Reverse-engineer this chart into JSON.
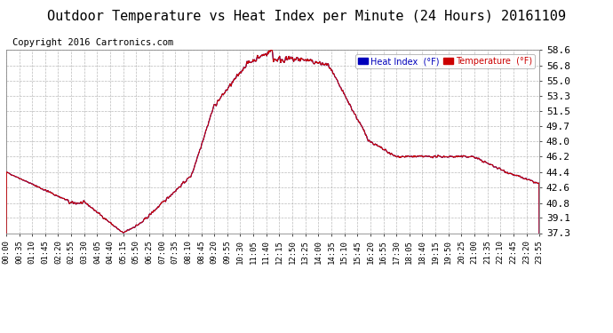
{
  "title": "Outdoor Temperature vs Heat Index per Minute (24 Hours) 20161109",
  "copyright": "Copyright 2016 Cartronics.com",
  "y_ticks": [
    37.3,
    39.1,
    40.8,
    42.6,
    44.4,
    46.2,
    48.0,
    49.7,
    51.5,
    53.3,
    55.0,
    56.8,
    58.6
  ],
  "ylim": [
    37.3,
    58.6
  ],
  "legend_heat_index_color": "#0000bb",
  "legend_temperature_color": "#cc0000",
  "line_color": "#cc0000",
  "background_color": "#ffffff",
  "title_fontsize": 11,
  "copyright_fontsize": 7.5,
  "tick_fontsize": 8,
  "x_tick_labels": [
    "00:00",
    "00:35",
    "01:10",
    "01:45",
    "02:20",
    "02:55",
    "03:30",
    "04:05",
    "04:40",
    "05:15",
    "05:50",
    "06:25",
    "07:00",
    "07:35",
    "08:10",
    "08:45",
    "09:20",
    "09:55",
    "10:30",
    "11:05",
    "11:40",
    "12:15",
    "12:50",
    "13:25",
    "14:00",
    "14:35",
    "15:10",
    "15:45",
    "16:20",
    "16:55",
    "17:30",
    "18:05",
    "18:40",
    "19:15",
    "19:50",
    "20:25",
    "21:00",
    "21:35",
    "22:10",
    "22:45",
    "23:20",
    "23:55"
  ]
}
